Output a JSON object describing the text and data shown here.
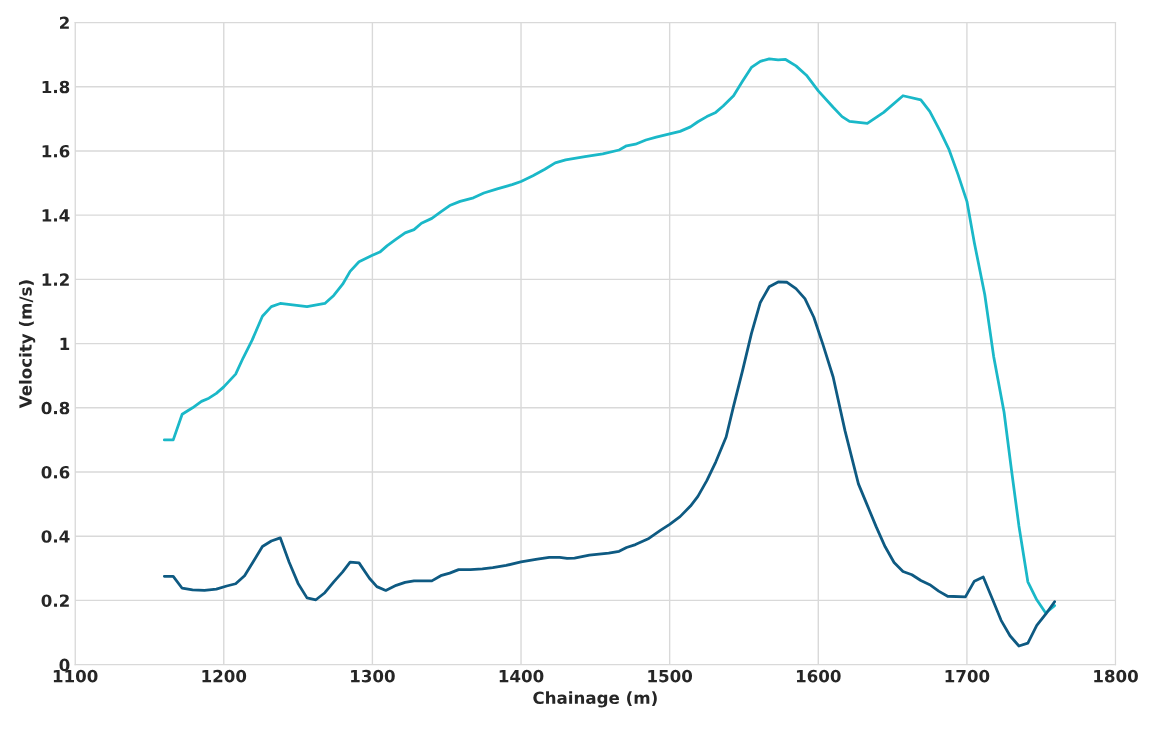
{
  "chart_data": {
    "type": "line",
    "xlabel": "Chainage (m)",
    "ylabel": "Velocity (m/s)",
    "xlim": [
      1100,
      1800
    ],
    "xticks": [
      1100,
      1200,
      1300,
      1400,
      1500,
      1600,
      1700,
      1800
    ],
    "ylim": [
      0,
      2
    ],
    "yticks": [
      0,
      0.2,
      0.4,
      0.6,
      0.8,
      1,
      1.2,
      1.4,
      1.6,
      1.8,
      2
    ],
    "grid": true,
    "marker": "none",
    "line_style": "solid",
    "series": [
      {
        "color": "#1ab8c8",
        "x": [
          1160,
          1166,
          1172,
          1179,
          1185,
          1190,
          1195,
          1200,
          1208,
          1213,
          1219,
          1226,
          1232,
          1238,
          1256,
          1268,
          1274,
          1280,
          1285,
          1291,
          1300,
          1305,
          1310,
          1316,
          1322,
          1328,
          1333,
          1340,
          1346,
          1352,
          1359,
          1368,
          1375,
          1384,
          1394,
          1400,
          1408,
          1416,
          1423,
          1430,
          1443,
          1455,
          1466,
          1471,
          1477,
          1484,
          1491,
          1500,
          1507,
          1514,
          1519,
          1525,
          1531,
          1536,
          1543,
          1549,
          1555,
          1561,
          1567,
          1573,
          1578,
          1585,
          1592,
          1600,
          1610,
          1616,
          1621,
          1633,
          1644,
          1657,
          1669,
          1675,
          1682,
          1688,
          1694,
          1700,
          1705,
          1712,
          1718,
          1725,
          1730,
          1735,
          1741,
          1747,
          1753,
          1759
        ],
        "values": [
          0.7,
          0.7,
          0.78,
          0.8,
          0.82,
          0.83,
          0.845,
          0.865,
          0.905,
          0.955,
          1.01,
          1.085,
          1.115,
          1.125,
          1.115,
          1.125,
          1.15,
          1.185,
          1.225,
          1.255,
          1.275,
          1.285,
          1.305,
          1.325,
          1.345,
          1.355,
          1.375,
          1.39,
          1.41,
          1.43,
          1.443,
          1.454,
          1.469,
          1.482,
          1.495,
          1.505,
          1.523,
          1.543,
          1.563,
          1.572,
          1.582,
          1.591,
          1.603,
          1.616,
          1.621,
          1.634,
          1.643,
          1.653,
          1.661,
          1.675,
          1.691,
          1.707,
          1.72,
          1.74,
          1.772,
          1.817,
          1.86,
          1.879,
          1.887,
          1.884,
          1.885,
          1.865,
          1.836,
          1.787,
          1.736,
          1.707,
          1.692,
          1.686,
          1.72,
          1.772,
          1.759,
          1.723,
          1.662,
          1.604,
          1.527,
          1.443,
          1.314,
          1.153,
          0.96,
          0.786,
          0.606,
          0.432,
          0.258,
          0.202,
          0.161,
          0.184
        ]
      },
      {
        "color": "#0e5a82",
        "x": [
          1160,
          1166,
          1172,
          1179,
          1187,
          1195,
          1202,
          1208,
          1214,
          1220,
          1226,
          1232,
          1238,
          1244,
          1250,
          1256,
          1262,
          1268,
          1274,
          1280,
          1285,
          1291,
          1298,
          1303,
          1309,
          1316,
          1322,
          1328,
          1340,
          1346,
          1352,
          1358,
          1366,
          1374,
          1381,
          1390,
          1400,
          1411,
          1419,
          1426,
          1431,
          1436,
          1446,
          1459,
          1466,
          1471,
          1477,
          1486,
          1494,
          1500,
          1507,
          1514,
          1519,
          1525,
          1531,
          1538,
          1543,
          1549,
          1555,
          1561,
          1567,
          1573,
          1579,
          1585,
          1591,
          1597,
          1603,
          1610,
          1618,
          1627,
          1633,
          1639,
          1645,
          1651,
          1657,
          1663,
          1669,
          1675,
          1681,
          1687,
          1699,
          1705,
          1711,
          1717,
          1723,
          1729,
          1735,
          1741,
          1747,
          1753,
          1759
        ],
        "values": [
          0.275,
          0.275,
          0.238,
          0.233,
          0.231,
          0.235,
          0.245,
          0.252,
          0.277,
          0.322,
          0.368,
          0.385,
          0.395,
          0.319,
          0.253,
          0.208,
          0.202,
          0.224,
          0.258,
          0.289,
          0.319,
          0.317,
          0.269,
          0.243,
          0.231,
          0.247,
          0.256,
          0.261,
          0.261,
          0.277,
          0.285,
          0.296,
          0.296,
          0.298,
          0.302,
          0.309,
          0.32,
          0.329,
          0.334,
          0.334,
          0.331,
          0.332,
          0.341,
          0.347,
          0.353,
          0.365,
          0.374,
          0.393,
          0.419,
          0.437,
          0.461,
          0.494,
          0.524,
          0.573,
          0.631,
          0.709,
          0.805,
          0.915,
          1.031,
          1.128,
          1.177,
          1.192,
          1.191,
          1.171,
          1.14,
          1.082,
          0.999,
          0.896,
          0.728,
          0.563,
          0.496,
          0.429,
          0.367,
          0.318,
          0.29,
          0.28,
          0.262,
          0.249,
          0.229,
          0.213,
          0.211,
          0.26,
          0.273,
          0.206,
          0.138,
          0.09,
          0.058,
          0.067,
          0.122,
          0.157,
          0.196
        ]
      }
    ]
  }
}
